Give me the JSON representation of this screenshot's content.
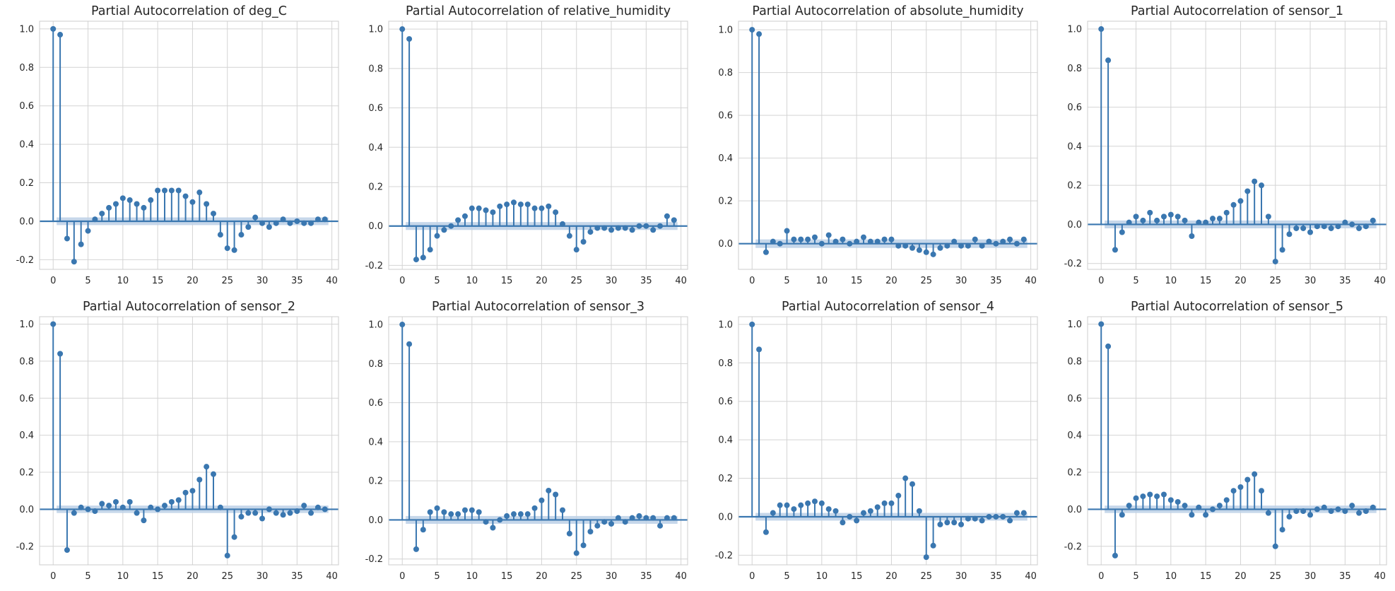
{
  "style": {
    "stem_color": "#3a77b0",
    "band_color": "#bcd0e6",
    "grid_color": "#d4d4d4",
    "frame_color": "#cccccc"
  },
  "chart_data": [
    {
      "type": "stem",
      "title": "Partial Autocorrelation of deg_C",
      "xlabel": "",
      "ylabel": "",
      "xlim": [
        -1.95,
        40.95
      ],
      "ylim": [
        -0.25,
        1.04
      ],
      "xticks": [
        0,
        5,
        10,
        15,
        20,
        25,
        30,
        35,
        40
      ],
      "yticks": [
        -0.2,
        0.0,
        0.2,
        0.4,
        0.6,
        0.8,
        1.0
      ],
      "grid": true,
      "confidence_band": 0.02,
      "lags": [
        0,
        1,
        2,
        3,
        4,
        5,
        6,
        7,
        8,
        9,
        10,
        11,
        12,
        13,
        14,
        15,
        16,
        17,
        18,
        19,
        20,
        21,
        22,
        23,
        24,
        25,
        26,
        27,
        28,
        29,
        30,
        31,
        32,
        33,
        34,
        35,
        36,
        37,
        38,
        39
      ],
      "values": [
        1.0,
        0.97,
        -0.09,
        -0.21,
        -0.12,
        -0.05,
        0.01,
        0.04,
        0.07,
        0.09,
        0.12,
        0.11,
        0.09,
        0.07,
        0.11,
        0.16,
        0.16,
        0.16,
        0.16,
        0.13,
        0.1,
        0.15,
        0.09,
        0.04,
        -0.07,
        -0.14,
        -0.15,
        -0.07,
        -0.03,
        0.02,
        -0.01,
        -0.03,
        -0.01,
        0.01,
        -0.01,
        0.0,
        -0.01,
        -0.01,
        0.01,
        0.01
      ]
    },
    {
      "type": "stem",
      "title": "Partial Autocorrelation of relative_humidity",
      "xlabel": "",
      "ylabel": "",
      "xlim": [
        -1.95,
        40.95
      ],
      "ylim": [
        -0.22,
        1.04
      ],
      "xticks": [
        0,
        5,
        10,
        15,
        20,
        25,
        30,
        35,
        40
      ],
      "yticks": [
        -0.2,
        0.0,
        0.2,
        0.4,
        0.6,
        0.8,
        1.0
      ],
      "grid": true,
      "confidence_band": 0.02,
      "lags": [
        0,
        1,
        2,
        3,
        4,
        5,
        6,
        7,
        8,
        9,
        10,
        11,
        12,
        13,
        14,
        15,
        16,
        17,
        18,
        19,
        20,
        21,
        22,
        23,
        24,
        25,
        26,
        27,
        28,
        29,
        30,
        31,
        32,
        33,
        34,
        35,
        36,
        37,
        38,
        39
      ],
      "values": [
        1.0,
        0.95,
        -0.17,
        -0.16,
        -0.12,
        -0.05,
        -0.02,
        0.0,
        0.03,
        0.05,
        0.09,
        0.09,
        0.08,
        0.07,
        0.1,
        0.11,
        0.12,
        0.11,
        0.11,
        0.09,
        0.09,
        0.1,
        0.07,
        0.01,
        -0.05,
        -0.12,
        -0.08,
        -0.03,
        -0.01,
        -0.01,
        -0.02,
        -0.01,
        -0.01,
        -0.02,
        0.0,
        0.0,
        -0.02,
        0.0,
        0.05,
        0.03
      ]
    },
    {
      "type": "stem",
      "title": "Partial Autocorrelation of absolute_humidity",
      "xlabel": "",
      "ylabel": "",
      "xlim": [
        -1.95,
        40.95
      ],
      "ylim": [
        -0.12,
        1.04
      ],
      "xticks": [
        0,
        5,
        10,
        15,
        20,
        25,
        30,
        35,
        40
      ],
      "yticks": [
        0.0,
        0.2,
        0.4,
        0.6,
        0.8,
        1.0
      ],
      "grid": true,
      "confidence_band": 0.02,
      "lags": [
        0,
        1,
        2,
        3,
        4,
        5,
        6,
        7,
        8,
        9,
        10,
        11,
        12,
        13,
        14,
        15,
        16,
        17,
        18,
        19,
        20,
        21,
        22,
        23,
        24,
        25,
        26,
        27,
        28,
        29,
        30,
        31,
        32,
        33,
        34,
        35,
        36,
        37,
        38,
        39
      ],
      "values": [
        1.0,
        0.98,
        -0.04,
        0.01,
        0.0,
        0.06,
        0.02,
        0.02,
        0.02,
        0.03,
        0.0,
        0.04,
        0.01,
        0.02,
        0.0,
        0.01,
        0.03,
        0.01,
        0.01,
        0.02,
        0.02,
        -0.01,
        -0.01,
        -0.02,
        -0.03,
        -0.04,
        -0.05,
        -0.02,
        -0.01,
        0.01,
        -0.01,
        -0.01,
        0.02,
        -0.01,
        0.01,
        0.0,
        0.01,
        0.02,
        0.0,
        0.02
      ]
    },
    {
      "type": "stem",
      "title": "Partial Autocorrelation of sensor_1",
      "xlabel": "",
      "ylabel": "",
      "xlim": [
        -1.95,
        40.95
      ],
      "ylim": [
        -0.23,
        1.04
      ],
      "xticks": [
        0,
        5,
        10,
        15,
        20,
        25,
        30,
        35,
        40
      ],
      "yticks": [
        -0.2,
        0.0,
        0.2,
        0.4,
        0.6,
        0.8,
        1.0
      ],
      "grid": true,
      "confidence_band": 0.02,
      "lags": [
        0,
        1,
        2,
        3,
        4,
        5,
        6,
        7,
        8,
        9,
        10,
        11,
        12,
        13,
        14,
        15,
        16,
        17,
        18,
        19,
        20,
        21,
        22,
        23,
        24,
        25,
        26,
        27,
        28,
        29,
        30,
        31,
        32,
        33,
        34,
        35,
        36,
        37,
        38,
        39
      ],
      "values": [
        1.0,
        0.84,
        -0.13,
        -0.04,
        0.01,
        0.04,
        0.02,
        0.06,
        0.02,
        0.04,
        0.05,
        0.04,
        0.02,
        -0.06,
        0.01,
        0.01,
        0.03,
        0.03,
        0.06,
        0.1,
        0.12,
        0.17,
        0.22,
        0.2,
        0.04,
        -0.19,
        -0.13,
        -0.05,
        -0.02,
        -0.02,
        -0.04,
        -0.01,
        -0.01,
        -0.02,
        -0.01,
        0.01,
        0.0,
        -0.02,
        -0.01,
        0.02
      ]
    },
    {
      "type": "stem",
      "title": "Partial Autocorrelation of sensor_2",
      "xlabel": "",
      "ylabel": "",
      "xlim": [
        -1.95,
        40.95
      ],
      "ylim": [
        -0.3,
        1.04
      ],
      "xticks": [
        0,
        5,
        10,
        15,
        20,
        25,
        30,
        35,
        40
      ],
      "yticks": [
        -0.2,
        0.0,
        0.2,
        0.4,
        0.6,
        0.8,
        1.0
      ],
      "grid": true,
      "confidence_band": 0.02,
      "lags": [
        0,
        1,
        2,
        3,
        4,
        5,
        6,
        7,
        8,
        9,
        10,
        11,
        12,
        13,
        14,
        15,
        16,
        17,
        18,
        19,
        20,
        21,
        22,
        23,
        24,
        25,
        26,
        27,
        28,
        29,
        30,
        31,
        32,
        33,
        34,
        35,
        36,
        37,
        38,
        39
      ],
      "values": [
        1.0,
        0.84,
        -0.22,
        -0.02,
        0.01,
        0.0,
        -0.01,
        0.03,
        0.02,
        0.04,
        0.01,
        0.04,
        -0.02,
        -0.06,
        0.01,
        0.0,
        0.02,
        0.04,
        0.05,
        0.09,
        0.1,
        0.16,
        0.23,
        0.19,
        0.01,
        -0.25,
        -0.15,
        -0.04,
        -0.02,
        -0.02,
        -0.05,
        0.0,
        -0.02,
        -0.03,
        -0.02,
        -0.01,
        0.02,
        -0.02,
        0.01,
        0.0
      ]
    },
    {
      "type": "stem",
      "title": "Partial Autocorrelation of sensor_3",
      "xlabel": "",
      "ylabel": "",
      "xlim": [
        -1.95,
        40.95
      ],
      "ylim": [
        -0.23,
        1.04
      ],
      "xticks": [
        0,
        5,
        10,
        15,
        20,
        25,
        30,
        35,
        40
      ],
      "yticks": [
        -0.2,
        0.0,
        0.2,
        0.4,
        0.6,
        0.8,
        1.0
      ],
      "grid": true,
      "confidence_band": 0.02,
      "lags": [
        0,
        1,
        2,
        3,
        4,
        5,
        6,
        7,
        8,
        9,
        10,
        11,
        12,
        13,
        14,
        15,
        16,
        17,
        18,
        19,
        20,
        21,
        22,
        23,
        24,
        25,
        26,
        27,
        28,
        29,
        30,
        31,
        32,
        33,
        34,
        35,
        36,
        37,
        38,
        39
      ],
      "values": [
        1.0,
        0.9,
        -0.15,
        -0.05,
        0.04,
        0.06,
        0.04,
        0.03,
        0.03,
        0.05,
        0.05,
        0.04,
        -0.01,
        -0.04,
        0.0,
        0.02,
        0.03,
        0.03,
        0.03,
        0.06,
        0.1,
        0.15,
        0.13,
        0.05,
        -0.07,
        -0.17,
        -0.13,
        -0.06,
        -0.03,
        -0.01,
        -0.02,
        0.01,
        -0.01,
        0.01,
        0.02,
        0.01,
        0.01,
        -0.03,
        0.01,
        0.01
      ]
    },
    {
      "type": "stem",
      "title": "Partial Autocorrelation of sensor_4",
      "xlabel": "",
      "ylabel": "",
      "xlim": [
        -1.95,
        40.95
      ],
      "ylim": [
        -0.25,
        1.04
      ],
      "xticks": [
        0,
        5,
        10,
        15,
        20,
        25,
        30,
        35,
        40
      ],
      "yticks": [
        -0.2,
        0.0,
        0.2,
        0.4,
        0.6,
        0.8,
        1.0
      ],
      "grid": true,
      "confidence_band": 0.02,
      "lags": [
        0,
        1,
        2,
        3,
        4,
        5,
        6,
        7,
        8,
        9,
        10,
        11,
        12,
        13,
        14,
        15,
        16,
        17,
        18,
        19,
        20,
        21,
        22,
        23,
        24,
        25,
        26,
        27,
        28,
        29,
        30,
        31,
        32,
        33,
        34,
        35,
        36,
        37,
        38,
        39
      ],
      "values": [
        1.0,
        0.87,
        -0.08,
        0.02,
        0.06,
        0.06,
        0.04,
        0.06,
        0.07,
        0.08,
        0.07,
        0.04,
        0.03,
        -0.03,
        0.0,
        -0.02,
        0.02,
        0.03,
        0.05,
        0.07,
        0.07,
        0.11,
        0.2,
        0.17,
        0.03,
        -0.21,
        -0.15,
        -0.04,
        -0.03,
        -0.03,
        -0.04,
        -0.01,
        -0.01,
        -0.02,
        0.0,
        0.0,
        0.0,
        -0.02,
        0.02,
        0.02
      ]
    },
    {
      "type": "stem",
      "title": "Partial Autocorrelation of sensor_5",
      "xlabel": "",
      "ylabel": "",
      "xlim": [
        -1.95,
        40.95
      ],
      "ylim": [
        -0.3,
        1.04
      ],
      "xticks": [
        0,
        5,
        10,
        15,
        20,
        25,
        30,
        35,
        40
      ],
      "yticks": [
        -0.2,
        0.0,
        0.2,
        0.4,
        0.6,
        0.8,
        1.0
      ],
      "grid": true,
      "confidence_band": 0.02,
      "lags": [
        0,
        1,
        2,
        3,
        4,
        5,
        6,
        7,
        8,
        9,
        10,
        11,
        12,
        13,
        14,
        15,
        16,
        17,
        18,
        19,
        20,
        21,
        22,
        23,
        24,
        25,
        26,
        27,
        28,
        29,
        30,
        31,
        32,
        33,
        34,
        35,
        36,
        37,
        38,
        39
      ],
      "values": [
        1.0,
        0.88,
        -0.25,
        -0.03,
        0.02,
        0.06,
        0.07,
        0.08,
        0.07,
        0.08,
        0.05,
        0.04,
        0.02,
        -0.03,
        0.01,
        -0.03,
        0.0,
        0.02,
        0.05,
        0.1,
        0.12,
        0.16,
        0.19,
        0.1,
        -0.02,
        -0.2,
        -0.11,
        -0.04,
        -0.01,
        -0.01,
        -0.03,
        0.0,
        0.01,
        -0.01,
        0.0,
        -0.01,
        0.02,
        -0.02,
        -0.01,
        0.01
      ]
    }
  ]
}
